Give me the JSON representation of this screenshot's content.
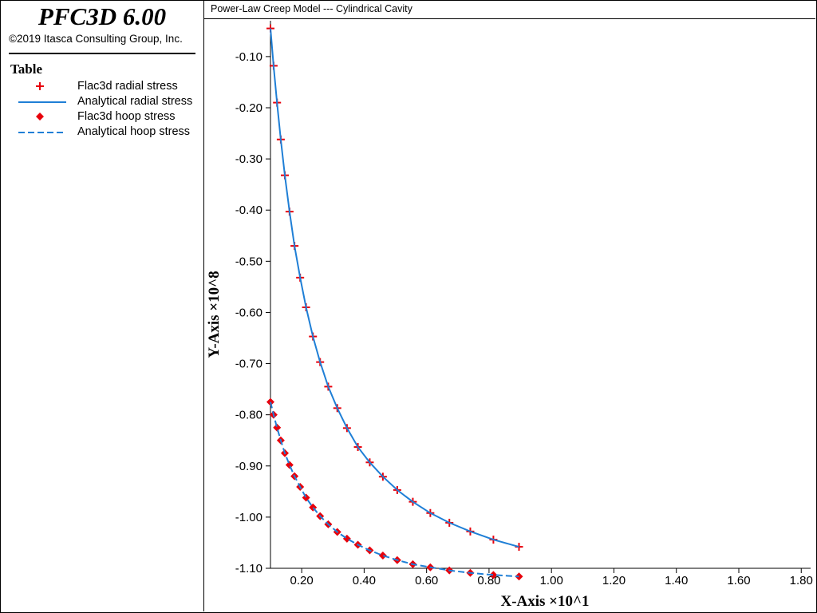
{
  "app": {
    "title": "PFC3D 6.00",
    "copyright": "©2019 Itasca Consulting Group, Inc."
  },
  "legend": {
    "heading": "Table",
    "items": [
      {
        "label": "Flac3d radial stress",
        "symbol": "plus",
        "color": "#e8000b"
      },
      {
        "label": "Analytical radial stress",
        "symbol": "solid-line",
        "color": "#1f7fd6"
      },
      {
        "label": "Flac3d hoop stress",
        "symbol": "diamond",
        "color": "#e8000b"
      },
      {
        "label": "Analytical hoop stress",
        "symbol": "dashed-line",
        "color": "#1f7fd6"
      }
    ]
  },
  "chart_data": {
    "type": "scatter",
    "title": "Power-Law Creep Model --- Cylindrical Cavity",
    "xlabel": "X-Axis ×10^1",
    "ylabel": "Y-Axis ×10^8",
    "xlim": [
      0.1,
      1.83
    ],
    "ylim": [
      -1.1,
      -0.03
    ],
    "xticks": [
      0.2,
      0.4,
      0.6,
      0.8,
      1.0,
      1.2,
      1.4,
      1.6,
      1.8
    ],
    "xtick_labels": [
      "0.20",
      "0.40",
      "0.60",
      "0.80",
      "1.00",
      "1.20",
      "1.40",
      "1.60",
      "1.80"
    ],
    "yticks": [
      -0.1,
      -0.2,
      -0.3,
      -0.4,
      -0.5,
      -0.6,
      -0.7,
      -0.8,
      -0.9,
      -1.0,
      -1.1
    ],
    "ytick_labels": [
      "-0.10",
      "-0.20",
      "-0.30",
      "-0.40",
      "-0.50",
      "-0.60",
      "-0.70",
      "-0.80",
      "-0.90",
      "-1.00",
      "-1.10"
    ],
    "grid": false,
    "legend_position": "left-panel",
    "colors": {
      "markers": "#e8000b",
      "lines": "#1f7fd6"
    },
    "series": [
      {
        "name": "Flac3d radial stress",
        "kind": "markers-plus",
        "x": [
          0.1,
          0.11,
          0.121,
          0.133,
          0.146,
          0.161,
          0.177,
          0.195,
          0.214,
          0.236,
          0.259,
          0.285,
          0.314,
          0.345,
          0.38,
          0.418,
          0.46,
          0.506,
          0.556,
          0.612,
          0.673,
          0.74,
          0.814,
          0.896
        ],
        "y": [
          -0.045,
          -0.118,
          -0.19,
          -0.262,
          -0.332,
          -0.403,
          -0.47,
          -0.532,
          -0.59,
          -0.647,
          -0.697,
          -0.745,
          -0.787,
          -0.826,
          -0.863,
          -0.893,
          -0.921,
          -0.947,
          -0.97,
          -0.992,
          -1.011,
          -1.028,
          -1.044,
          -1.058
        ]
      },
      {
        "name": "Analytical radial stress",
        "kind": "solid-line",
        "x": [
          0.1,
          0.11,
          0.121,
          0.133,
          0.146,
          0.161,
          0.177,
          0.195,
          0.214,
          0.236,
          0.259,
          0.285,
          0.314,
          0.345,
          0.38,
          0.418,
          0.46,
          0.506,
          0.556,
          0.612,
          0.673,
          0.74,
          0.814,
          0.896
        ],
        "y": [
          -0.045,
          -0.118,
          -0.19,
          -0.262,
          -0.332,
          -0.403,
          -0.47,
          -0.532,
          -0.59,
          -0.647,
          -0.697,
          -0.745,
          -0.787,
          -0.826,
          -0.863,
          -0.893,
          -0.921,
          -0.947,
          -0.97,
          -0.992,
          -1.011,
          -1.028,
          -1.044,
          -1.058
        ]
      },
      {
        "name": "Flac3d hoop stress",
        "kind": "markers-diamond",
        "x": [
          0.1,
          0.11,
          0.121,
          0.133,
          0.146,
          0.161,
          0.177,
          0.195,
          0.214,
          0.236,
          0.259,
          0.285,
          0.314,
          0.345,
          0.38,
          0.418,
          0.46,
          0.506,
          0.556,
          0.612,
          0.673,
          0.74,
          0.814,
          0.896
        ],
        "y": [
          -0.775,
          -0.8,
          -0.825,
          -0.85,
          -0.875,
          -0.898,
          -0.92,
          -0.941,
          -0.962,
          -0.981,
          -0.998,
          -1.014,
          -1.029,
          -1.042,
          -1.054,
          -1.065,
          -1.075,
          -1.084,
          -1.092,
          -1.098,
          -1.104,
          -1.109,
          -1.113,
          -1.116
        ]
      },
      {
        "name": "Analytical hoop stress",
        "kind": "dashed-line",
        "x": [
          0.1,
          0.11,
          0.121,
          0.133,
          0.146,
          0.161,
          0.177,
          0.195,
          0.214,
          0.236,
          0.259,
          0.285,
          0.314,
          0.345,
          0.38,
          0.418,
          0.46,
          0.506,
          0.556,
          0.612,
          0.673,
          0.74,
          0.814,
          0.896
        ],
        "y": [
          -0.775,
          -0.8,
          -0.825,
          -0.85,
          -0.875,
          -0.898,
          -0.92,
          -0.941,
          -0.962,
          -0.981,
          -0.998,
          -1.014,
          -1.029,
          -1.042,
          -1.054,
          -1.065,
          -1.075,
          -1.084,
          -1.092,
          -1.098,
          -1.104,
          -1.109,
          -1.113,
          -1.116
        ]
      }
    ]
  }
}
